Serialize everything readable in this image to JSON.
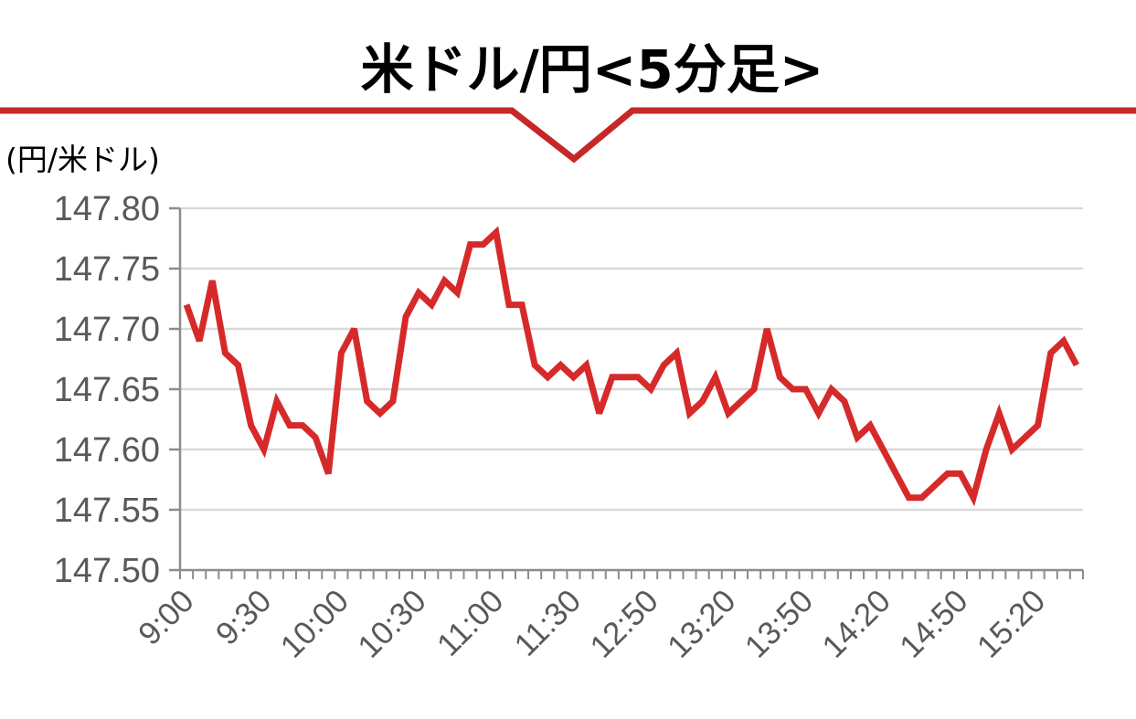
{
  "title": "米ドル/円<5分足>",
  "unit_label": "(円/米ドル)",
  "colors": {
    "line": "#d62a2a",
    "banner_line": "#c62828",
    "grid": "#d9d9d9",
    "axis": "#8c8c8c",
    "tick_text": "#595959"
  },
  "chart_data": {
    "type": "line",
    "title": "米ドル/円<5分足>",
    "ylabel": "(円/米ドル)",
    "ylim": [
      147.5,
      147.8
    ],
    "y_ticks": [
      "147.80",
      "147.75",
      "147.70",
      "147.65",
      "147.60",
      "147.55",
      "147.50"
    ],
    "x_tick_labels": [
      "9:00",
      "9:30",
      "10:00",
      "10:30",
      "11:00",
      "11:30",
      "12:50",
      "13:20",
      "13:50",
      "14:20",
      "14:50",
      "15:20"
    ],
    "grid": true,
    "series": [
      {
        "values": [
          147.72,
          147.69,
          147.74,
          147.68,
          147.67,
          147.62,
          147.6,
          147.64,
          147.62,
          147.62,
          147.61,
          147.58,
          147.68,
          147.7,
          147.64,
          147.63,
          147.64,
          147.71,
          147.73,
          147.72,
          147.74,
          147.73,
          147.77,
          147.77,
          147.78,
          147.72,
          147.72,
          147.67,
          147.66,
          147.67,
          147.66,
          147.67,
          147.63,
          147.66,
          147.66,
          147.66,
          147.65,
          147.67,
          147.68,
          147.63,
          147.64,
          147.66,
          147.63,
          147.64,
          147.65,
          147.7,
          147.66,
          147.65,
          147.65,
          147.63,
          147.65,
          147.64,
          147.61,
          147.62,
          147.6,
          147.58,
          147.56,
          147.56,
          147.57,
          147.58,
          147.58,
          147.56,
          147.6,
          147.63,
          147.6,
          147.61,
          147.62,
          147.68,
          147.69,
          147.67
        ]
      }
    ]
  }
}
